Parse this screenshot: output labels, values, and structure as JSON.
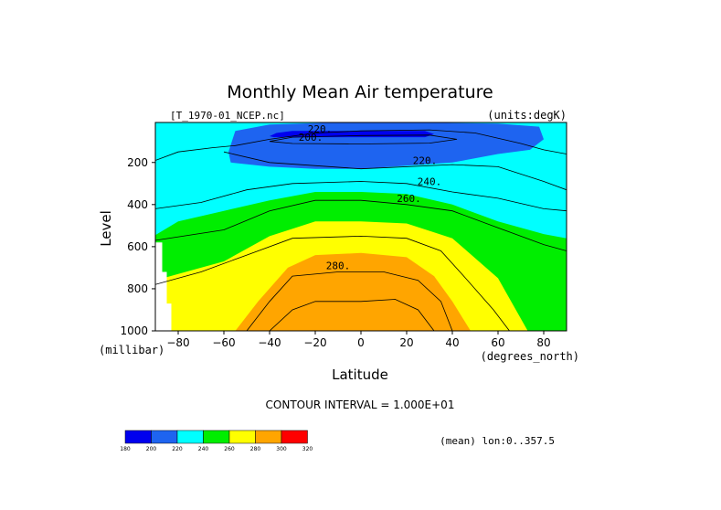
{
  "chart_data": {
    "type": "contour",
    "title": "Monthly Mean Air temperature",
    "dataset": "[T_1970-01_NCEP.nc]",
    "units": "(units:degK)",
    "xlabel": "Latitude",
    "xunits": "(degrees_north)",
    "ylabel": "Level",
    "yunits": "(millibar)",
    "xlim": [
      -90,
      90
    ],
    "ylim": [
      1000,
      10
    ],
    "y_inverted": true,
    "x_ticks": [
      -80,
      -60,
      -40,
      -20,
      0,
      20,
      40,
      60,
      80
    ],
    "y_ticks": [
      200,
      400,
      600,
      800,
      1000
    ],
    "contour_interval_label": "CONTOUR INTERVAL = 1.000E+01",
    "contour_interval": 10,
    "contour_labels": [
      {
        "text": "220.",
        "lat": -18,
        "lev": 40
      },
      {
        "text": "200.",
        "lat": -22,
        "lev": 80
      },
      {
        "text": "220.",
        "lat": 28,
        "lev": 190
      },
      {
        "text": "240.",
        "lat": 30,
        "lev": 290
      },
      {
        "text": "260.",
        "lat": 21,
        "lev": 370
      },
      {
        "text": "280.",
        "lat": -10,
        "lev": 690
      }
    ],
    "note": "(mean) lon:0..357.5",
    "colorbar": {
      "boundaries": [
        "180",
        "200",
        "220",
        "240",
        "260",
        "280",
        "300",
        "320"
      ],
      "colors": [
        "#0000ee",
        "#1e64f0",
        "#00ffff",
        "#00ee00",
        "#ffff00",
        "#ffa500",
        "#ff0000"
      ]
    },
    "fill_regions": [
      {
        "band": "240-260",
        "color": "#00ee00",
        "polygon": [
          [
            -90,
            545
          ],
          [
            -80,
            480
          ],
          [
            -60,
            430
          ],
          [
            -40,
            380
          ],
          [
            -20,
            340
          ],
          [
            0,
            340
          ],
          [
            20,
            350
          ],
          [
            40,
            400
          ],
          [
            60,
            480
          ],
          [
            80,
            540
          ],
          [
            90,
            560
          ],
          [
            90,
            1000
          ],
          [
            -90,
            1000
          ]
        ]
      },
      {
        "band": "260-280",
        "color": "#ffff00",
        "polygon": [
          [
            -90,
            760
          ],
          [
            -80,
            730
          ],
          [
            -60,
            670
          ],
          [
            -40,
            550
          ],
          [
            -20,
            480
          ],
          [
            0,
            480
          ],
          [
            20,
            490
          ],
          [
            40,
            560
          ],
          [
            60,
            750
          ],
          [
            73,
            1000
          ],
          [
            -90,
            1000
          ]
        ]
      },
      {
        "band": "280-290",
        "color": "#ffa500",
        "polygon": [
          [
            -55,
            1000
          ],
          [
            -45,
            860
          ],
          [
            -32,
            700
          ],
          [
            -20,
            640
          ],
          [
            0,
            630
          ],
          [
            20,
            650
          ],
          [
            32,
            740
          ],
          [
            40,
            860
          ],
          [
            48,
            1000
          ]
        ]
      }
    ],
    "cold_regions": [
      {
        "band": "200-220",
        "color": "#1e64f0",
        "polygon": [
          [
            -57,
            200
          ],
          [
            -58,
            150
          ],
          [
            -55,
            50
          ],
          [
            -40,
            20
          ],
          [
            -10,
            10
          ],
          [
            20,
            10
          ],
          [
            60,
            15
          ],
          [
            78,
            30
          ],
          [
            80,
            90
          ],
          [
            74,
            140
          ],
          [
            60,
            160
          ],
          [
            40,
            200
          ],
          [
            20,
            215
          ],
          [
            0,
            230
          ],
          [
            -20,
            230
          ],
          [
            -40,
            220
          ]
        ]
      },
      {
        "band": "180-200",
        "color": "#0000ee",
        "polygon": [
          [
            -40,
            75
          ],
          [
            -37,
            60
          ],
          [
            -30,
            50
          ],
          [
            0,
            50
          ],
          [
            28,
            50
          ],
          [
            32,
            65
          ],
          [
            28,
            80
          ],
          [
            0,
            80
          ],
          [
            -30,
            80
          ],
          [
            -38,
            80
          ]
        ]
      }
    ],
    "missing_region": {
      "color": "#ffffff",
      "polygon": [
        [
          -90,
          580
        ],
        [
          -87,
          580
        ],
        [
          -87,
          720
        ],
        [
          -85,
          720
        ],
        [
          -85,
          870
        ],
        [
          -83,
          870
        ],
        [
          -83,
          1000
        ],
        [
          -90,
          1000
        ]
      ]
    },
    "contour_lines": [
      [
        [
          -90,
          190
        ],
        [
          -80,
          150
        ],
        [
          -65,
          130
        ],
        [
          -55,
          120
        ],
        [
          -40,
          90
        ],
        [
          -20,
          60
        ],
        [
          0,
          50
        ],
        [
          30,
          45
        ],
        [
          50,
          60
        ],
        [
          70,
          110
        ],
        [
          80,
          140
        ],
        [
          90,
          160
        ]
      ],
      [
        [
          -40,
          100
        ],
        [
          -30,
          80
        ],
        [
          0,
          72
        ],
        [
          30,
          70
        ],
        [
          42,
          90
        ],
        [
          30,
          108
        ],
        [
          0,
          112
        ],
        [
          -30,
          110
        ],
        [
          -40,
          100
        ]
      ],
      [
        [
          -60,
          150
        ],
        [
          -40,
          200
        ],
        [
          0,
          230
        ],
        [
          40,
          210
        ],
        [
          60,
          220
        ],
        [
          80,
          290
        ],
        [
          90,
          330
        ]
      ],
      [
        [
          -90,
          420
        ],
        [
          -70,
          390
        ],
        [
          -50,
          330
        ],
        [
          -30,
          300
        ],
        [
          0,
          290
        ],
        [
          20,
          300
        ],
        [
          40,
          340
        ],
        [
          60,
          370
        ],
        [
          80,
          420
        ],
        [
          90,
          430
        ]
      ],
      [
        [
          -90,
          570
        ],
        [
          -60,
          520
        ],
        [
          -40,
          430
        ],
        [
          -20,
          380
        ],
        [
          0,
          380
        ],
        [
          20,
          400
        ],
        [
          40,
          430
        ],
        [
          60,
          510
        ],
        [
          80,
          590
        ],
        [
          90,
          620
        ]
      ],
      [
        [
          -90,
          780
        ],
        [
          -70,
          720
        ],
        [
          -50,
          640
        ],
        [
          -30,
          560
        ],
        [
          0,
          550
        ],
        [
          20,
          560
        ],
        [
          35,
          620
        ],
        [
          45,
          740
        ],
        [
          58,
          900
        ],
        [
          65,
          1000
        ]
      ],
      [
        [
          -50,
          1000
        ],
        [
          -40,
          860
        ],
        [
          -30,
          740
        ],
        [
          -10,
          720
        ],
        [
          10,
          720
        ],
        [
          25,
          760
        ],
        [
          35,
          860
        ],
        [
          40,
          1000
        ]
      ],
      [
        [
          -40,
          1000
        ],
        [
          -30,
          900
        ],
        [
          -20,
          860
        ],
        [
          0,
          860
        ],
        [
          15,
          850
        ],
        [
          25,
          900
        ],
        [
          32,
          1000
        ]
      ]
    ]
  }
}
